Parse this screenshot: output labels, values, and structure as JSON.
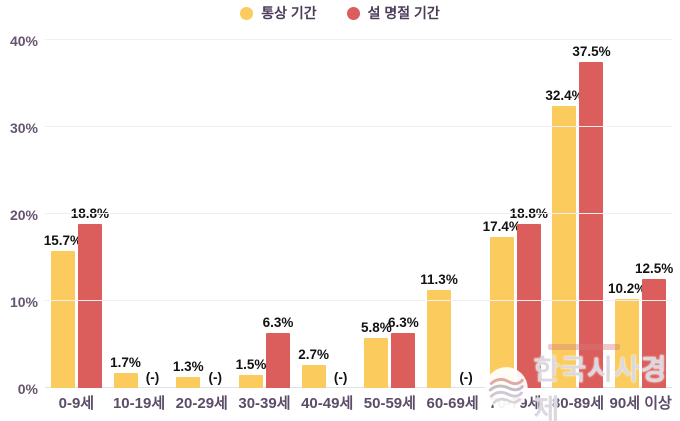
{
  "legend": {
    "series1": "통상 기간",
    "series2": "설 명절 기간"
  },
  "colors": {
    "series1": "#FBCB5D",
    "series2": "#DB5E5C",
    "axis_text": "#66556f",
    "value_text": "#121212",
    "grid": "#f1eff2"
  },
  "y_axis": {
    "tick_labels": [
      "0%",
      "10%",
      "20%",
      "30%",
      "40%"
    ],
    "tick_values": [
      0,
      10,
      20,
      30,
      40
    ]
  },
  "watermark": {
    "name": "한국시사경제",
    "logo": "wave-circle-logo"
  },
  "chart_data": {
    "type": "bar",
    "title": "",
    "xlabel": "",
    "ylabel": "",
    "ylim": [
      0,
      40
    ],
    "grid": true,
    "legend_position": "top",
    "null_label": "(-)",
    "categories": [
      "0-9세",
      "10-19세",
      "20-29세",
      "30-39세",
      "40-49세",
      "50-59세",
      "60-69세",
      "70-79세",
      "80-89세",
      "90세 이상"
    ],
    "series": [
      {
        "name": "통상 기간",
        "color": "#FBCB5D",
        "values": [
          15.7,
          1.7,
          1.3,
          1.5,
          2.7,
          5.8,
          11.3,
          17.4,
          32.4,
          10.2
        ],
        "labels": [
          "15.7%",
          "1.7%",
          "1.3%",
          "1.5%",
          "2.7%",
          "5.8%",
          "11.3%",
          "17.4%",
          "32.4%",
          "10.2%"
        ]
      },
      {
        "name": "설 명절 기간",
        "color": "#DB5E5C",
        "values": [
          18.8,
          null,
          null,
          6.3,
          null,
          6.3,
          null,
          18.8,
          37.5,
          12.5
        ],
        "labels": [
          "18.8%",
          "(-)",
          "(-)",
          "6.3%",
          "(-)",
          "6.3%",
          "(-)",
          "18.8%",
          "37.5%",
          "12.5%"
        ]
      }
    ]
  }
}
